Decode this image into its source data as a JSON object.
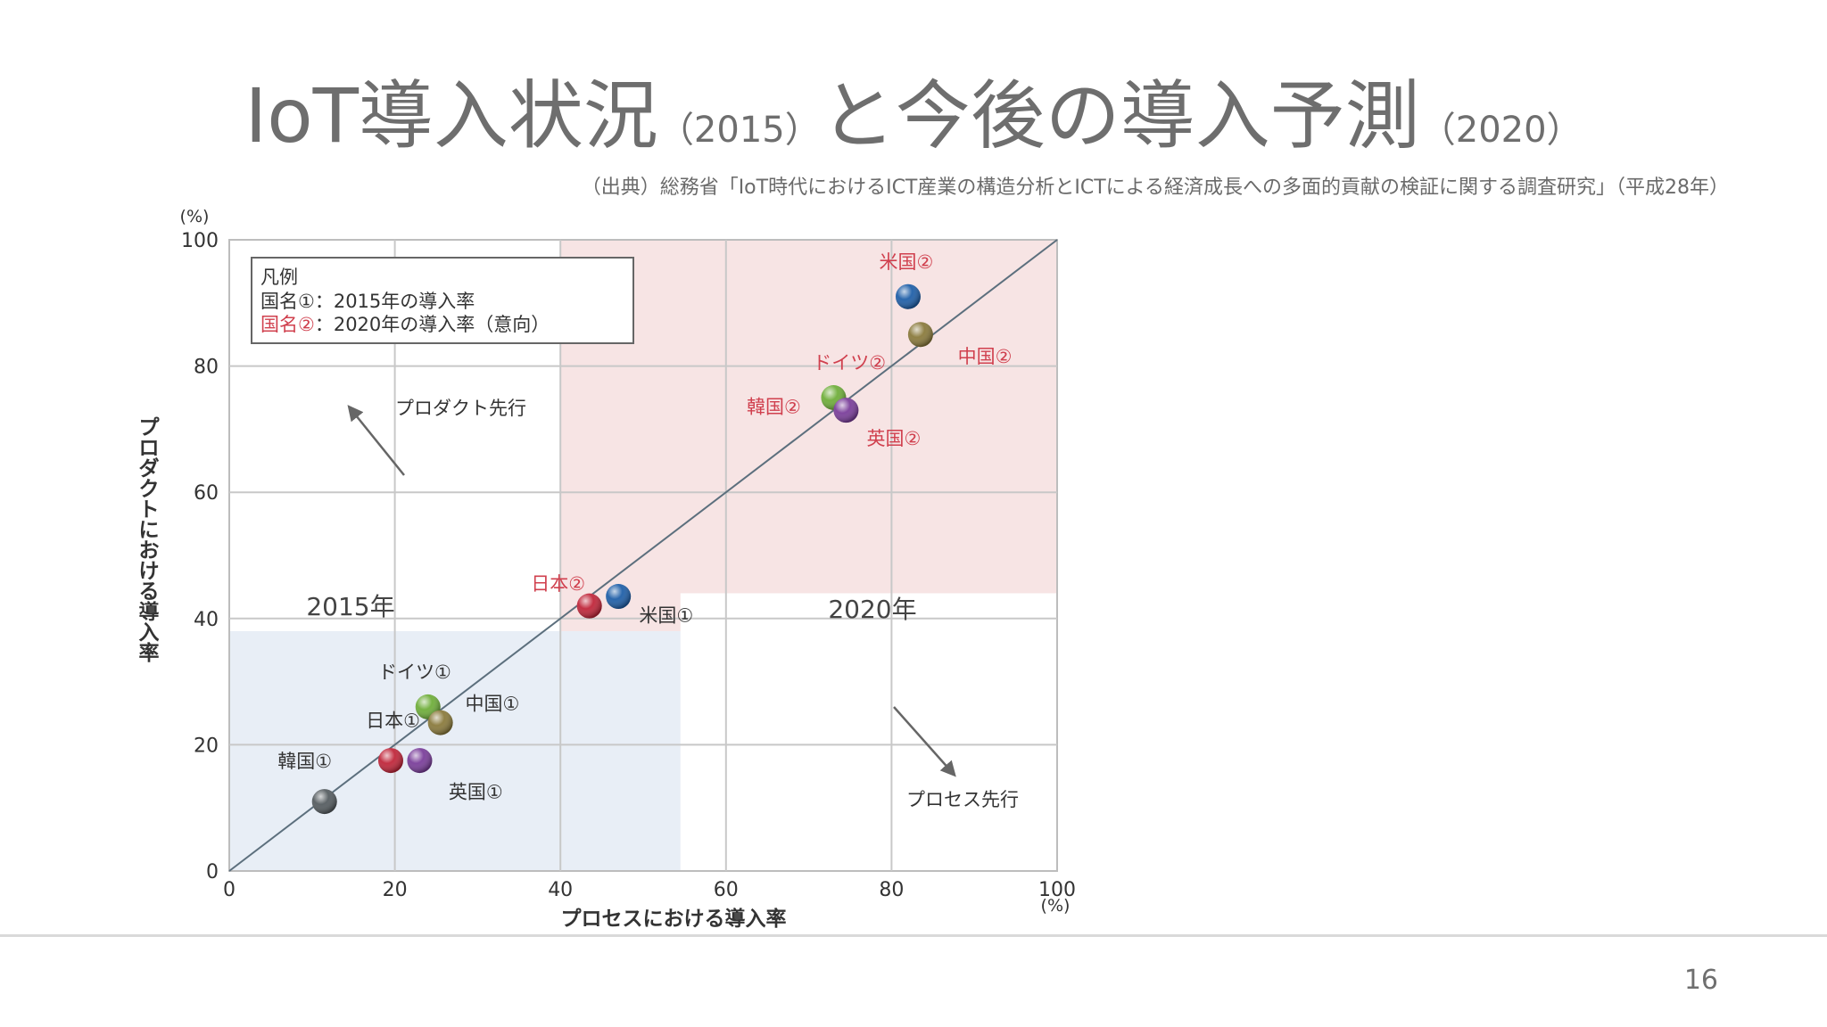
{
  "slide": {
    "title_main_1": "IoT導入状況",
    "title_sub_1": "（2015）",
    "title_main_2": "と今後の導入予測",
    "title_sub_2": "（2020）",
    "source": "（出典）総務省「IoT時代におけるICT産業の構造分析とICTによる経済成長への多面的貢献の検証に関する調査研究」（平成28年）",
    "page_number": "16"
  },
  "chart_data": {
    "type": "scatter",
    "xlabel": "プロセスにおける導入率",
    "ylabel": "プロダクトにおける導入率",
    "x_unit": "(%)",
    "y_unit": "(%)",
    "xlim": [
      0,
      100
    ],
    "ylim": [
      0,
      100
    ],
    "x_ticks": [
      0,
      20,
      40,
      60,
      80,
      100
    ],
    "y_ticks": [
      0,
      20,
      40,
      60,
      80,
      100
    ],
    "grid": true,
    "legend": {
      "placement": "top-left",
      "title": "凡例",
      "entry_prefix_1": "国名①",
      "entry_text_1": "：2015年の導入率",
      "entry_prefix_2": "国名②",
      "entry_text_2": "：2020年の導入率（意向）"
    },
    "region_2015": {
      "label": "2015年",
      "x": [
        0,
        54.5
      ],
      "y": [
        0,
        38
      ],
      "color": "#e8eef6"
    },
    "region_2020": {
      "label": "2020年",
      "x": [
        40,
        100
      ],
      "y": [
        44,
        100
      ],
      "cut": [
        54.5,
        44
      ],
      "color": "#f7e4e4"
    },
    "annotations": {
      "product_lead": "プロダクト先行",
      "process_lead": "プロセス先行"
    },
    "points": [
      {
        "label": "",
        "x": 11.5,
        "y": 11,
        "color": "#555c60"
      },
      {
        "label": "韓国①",
        "x": 19.5,
        "y": 17.5,
        "color": "#c0263a"
      },
      {
        "label": "英国①",
        "x": 23,
        "y": 17.5,
        "color": "#7a3e9a"
      },
      {
        "label": "日本①",
        "x": 24,
        "y": 26,
        "color": "#6fae3a"
      },
      {
        "label": "ドイツ①",
        "x": 24,
        "y": 26,
        "color": "#6fae3a",
        "hidden": true
      },
      {
        "label": "中国①",
        "x": 25.5,
        "y": 23.5,
        "color": "#8a7a3c"
      },
      {
        "label": "日本②",
        "x": 43.5,
        "y": 42,
        "color": "#c0263a"
      },
      {
        "label": "米国①",
        "x": 47,
        "y": 43.5,
        "color": "#1f5fa8"
      },
      {
        "label": "韓国②",
        "x": 73,
        "y": 75,
        "color": "#6fae3a"
      },
      {
        "label": "英国②",
        "x": 74.5,
        "y": 73,
        "color": "#7a3e9a"
      },
      {
        "label": "ドイツ②",
        "x": 83.5,
        "y": 85,
        "color": "#8a7a3c"
      },
      {
        "label": "中国②",
        "x": 83.5,
        "y": 85,
        "color": "#8a7a3c",
        "hidden": true
      },
      {
        "label": "米国②",
        "x": 82,
        "y": 91,
        "color": "#1f5fa8"
      }
    ],
    "point_labels": [
      {
        "text": "韓国①",
        "x": 12.4,
        "y": 16.4,
        "anchor": "end",
        "color": "#333333"
      },
      {
        "text": "英国①",
        "x": 26.5,
        "y": 11.5,
        "anchor": "start",
        "color": "#333333"
      },
      {
        "text": "日本①",
        "x": 16.5,
        "y": 22.8,
        "anchor": "start",
        "color": "#333333"
      },
      {
        "text": "ドイツ①",
        "x": 18,
        "y": 30.5,
        "anchor": "start",
        "color": "#333333"
      },
      {
        "text": "中国①",
        "x": 28.5,
        "y": 25.5,
        "anchor": "start",
        "color": "#333333"
      },
      {
        "text": "日本②",
        "x": 43,
        "y": 44.5,
        "anchor": "end",
        "color": "#d0404e"
      },
      {
        "text": "米国①",
        "x": 49.5,
        "y": 39.5,
        "anchor": "start",
        "color": "#333333"
      },
      {
        "text": "韓国②",
        "x": 62.5,
        "y": 72.5,
        "anchor": "start",
        "color": "#d0404e"
      },
      {
        "text": "英国②",
        "x": 77,
        "y": 67.5,
        "anchor": "start",
        "color": "#d0404e"
      },
      {
        "text": "ドイツ②",
        "x": 70.5,
        "y": 79.5,
        "anchor": "start",
        "color": "#d0404e"
      },
      {
        "text": "中国②",
        "x": 88,
        "y": 80.5,
        "anchor": "start",
        "color": "#d0404e"
      },
      {
        "text": "米国②",
        "x": 78.5,
        "y": 95.5,
        "anchor": "start",
        "color": "#d0404e"
      }
    ]
  }
}
